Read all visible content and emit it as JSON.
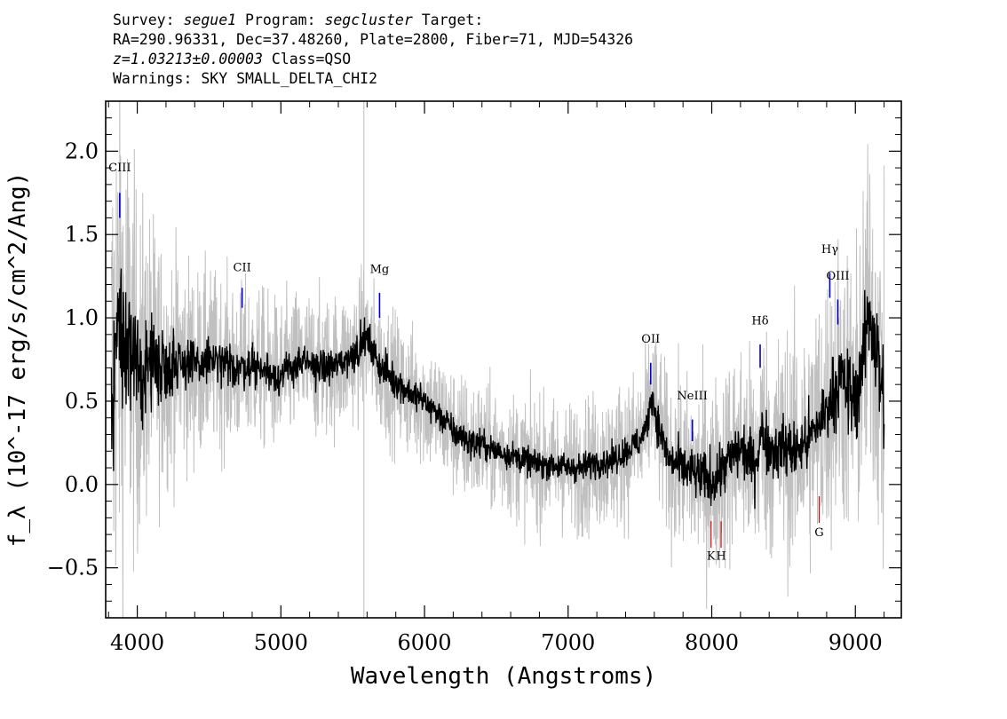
{
  "header": {
    "line1": {
      "survey_label": "Survey: ",
      "survey": "segue1",
      "program_label": " Program: ",
      "program": "segcluster",
      "target_label": " Target:"
    },
    "line2": "RA=290.96331, Dec=37.48260, Plate=2800, Fiber=71, MJD=54326",
    "line3": {
      "z": "z=1.03213±0.00003",
      "class": " Class=QSO"
    },
    "line4": "Warnings: SKY SMALL_DELTA_CHI2"
  },
  "colors": {
    "flux": "#000000",
    "error_band": "#c0c0c0",
    "emission_marker": "#0000cc",
    "absorption_marker": "#cc0000",
    "sky_line": "#bbbbbb"
  },
  "chart_data": {
    "type": "line",
    "xlabel": "Wavelength (Angstroms)",
    "ylabel": "f_λ (10^-17 erg/s/cm^2/Ang)",
    "xlim": [
      3780,
      9320
    ],
    "ylim": [
      -0.8,
      2.3
    ],
    "x_ticks": [
      "4000",
      "5000",
      "6000",
      "7000",
      "8000",
      "9000"
    ],
    "x_tick_values": [
      4000,
      5000,
      6000,
      7000,
      8000,
      9000
    ],
    "y_ticks": [
      "−0.5",
      "0.0",
      "0.5",
      "1.0",
      "1.5",
      "2.0"
    ],
    "y_tick_values": [
      -0.5,
      0.0,
      0.5,
      1.0,
      1.5,
      2.0
    ],
    "grid": false,
    "series": [
      {
        "role": "flux",
        "wavelength": [
          3820,
          3850,
          3880,
          3900,
          3950,
          4000,
          4100,
          4200,
          4300,
          4400,
          4500,
          4600,
          4700,
          4800,
          4900,
          5000,
          5100,
          5200,
          5300,
          5400,
          5500,
          5550,
          5580,
          5650,
          5700,
          5800,
          5900,
          6000,
          6100,
          6200,
          6300,
          6400,
          6500,
          6600,
          6700,
          6800,
          6900,
          7000,
          7100,
          7200,
          7300,
          7400,
          7500,
          7550,
          7580,
          7620,
          7700,
          7800,
          7900,
          8000,
          8100,
          8200,
          8300,
          8350,
          8400,
          8500,
          8600,
          8700,
          8800,
          8850,
          8900,
          8950,
          9000,
          9050,
          9100,
          9150,
          9200
        ],
        "values": [
          0.45,
          0.9,
          1.0,
          0.85,
          0.8,
          0.65,
          0.75,
          0.7,
          0.75,
          0.7,
          0.75,
          0.72,
          0.7,
          0.72,
          0.68,
          0.65,
          0.72,
          0.72,
          0.7,
          0.72,
          0.78,
          0.82,
          0.9,
          0.78,
          0.7,
          0.62,
          0.55,
          0.5,
          0.42,
          0.32,
          0.26,
          0.24,
          0.2,
          0.18,
          0.14,
          0.12,
          0.12,
          0.1,
          0.1,
          0.14,
          0.14,
          0.2,
          0.26,
          0.35,
          0.55,
          0.38,
          0.15,
          0.1,
          0.05,
          0.02,
          0.12,
          0.22,
          0.12,
          0.32,
          0.22,
          0.22,
          0.2,
          0.3,
          0.45,
          0.55,
          0.65,
          0.55,
          0.5,
          0.75,
          1.05,
          0.8,
          0.45
        ],
        "noise_amplitude": [
          0.6,
          0.65,
          0.55,
          0.5,
          0.45,
          0.4,
          0.32,
          0.28,
          0.24,
          0.2,
          0.18,
          0.17,
          0.16,
          0.16,
          0.15,
          0.14,
          0.14,
          0.14,
          0.14,
          0.14,
          0.14,
          0.14,
          0.14,
          0.14,
          0.14,
          0.13,
          0.13,
          0.12,
          0.12,
          0.12,
          0.12,
          0.12,
          0.11,
          0.11,
          0.11,
          0.11,
          0.11,
          0.11,
          0.11,
          0.12,
          0.12,
          0.12,
          0.13,
          0.13,
          0.14,
          0.15,
          0.16,
          0.18,
          0.2,
          0.22,
          0.22,
          0.22,
          0.22,
          0.24,
          0.24,
          0.24,
          0.24,
          0.24,
          0.26,
          0.28,
          0.3,
          0.32,
          0.34,
          0.36,
          0.4,
          0.44,
          0.48
        ]
      },
      {
        "role": "error_band",
        "wavelength": [
          3820,
          3900,
          4000,
          4200,
          4500,
          5000,
          5500,
          6000,
          6500,
          7000,
          7500,
          8000,
          8500,
          9000,
          9200
        ],
        "values": [
          1.3,
          1.1,
          0.75,
          0.5,
          0.38,
          0.32,
          0.3,
          0.28,
          0.27,
          0.28,
          0.32,
          0.42,
          0.5,
          0.65,
          0.8
        ]
      }
    ],
    "sky_lines": [
      5578
    ],
    "emission_lines": [
      {
        "label": "CIII",
        "wavelength": 3878,
        "label_y": 1.88,
        "mark_top": 1.75,
        "mark_bottom": 1.6
      },
      {
        "label": "CII",
        "wavelength": 4730,
        "label_y": 1.28,
        "mark_top": 1.18,
        "mark_bottom": 1.06
      },
      {
        "label": "Mg",
        "wavelength": 5687,
        "label_y": 1.27,
        "mark_top": 1.15,
        "mark_bottom": 1.0
      },
      {
        "label": "OII",
        "wavelength": 7575,
        "label_y": 0.85,
        "mark_top": 0.73,
        "mark_bottom": 0.6
      },
      {
        "label": "NeIII",
        "wavelength": 7865,
        "label_y": 0.51,
        "mark_top": 0.39,
        "mark_bottom": 0.26
      },
      {
        "label": "Hδ",
        "wavelength": 8337,
        "label_y": 0.96,
        "mark_top": 0.84,
        "mark_bottom": 0.7
      },
      {
        "label": "Hγ",
        "wavelength": 8822,
        "label_y": 1.39,
        "mark_top": 1.27,
        "mark_bottom": 1.12
      },
      {
        "label": "OIII",
        "wavelength": 8878,
        "label_y": 1.23,
        "mark_top": 1.11,
        "mark_bottom": 0.96
      }
    ],
    "absorption_lines": [
      {
        "label": "K",
        "wavelength": 7995,
        "mark_top": -0.22,
        "mark_bottom": -0.38,
        "label_y": -0.45
      },
      {
        "label": "H",
        "wavelength": 8065,
        "mark_top": -0.22,
        "mark_bottom": -0.38,
        "label_y": -0.45
      },
      {
        "label": "G",
        "wavelength": 8748,
        "mark_top": -0.07,
        "mark_bottom": -0.23,
        "label_y": -0.31
      }
    ]
  }
}
